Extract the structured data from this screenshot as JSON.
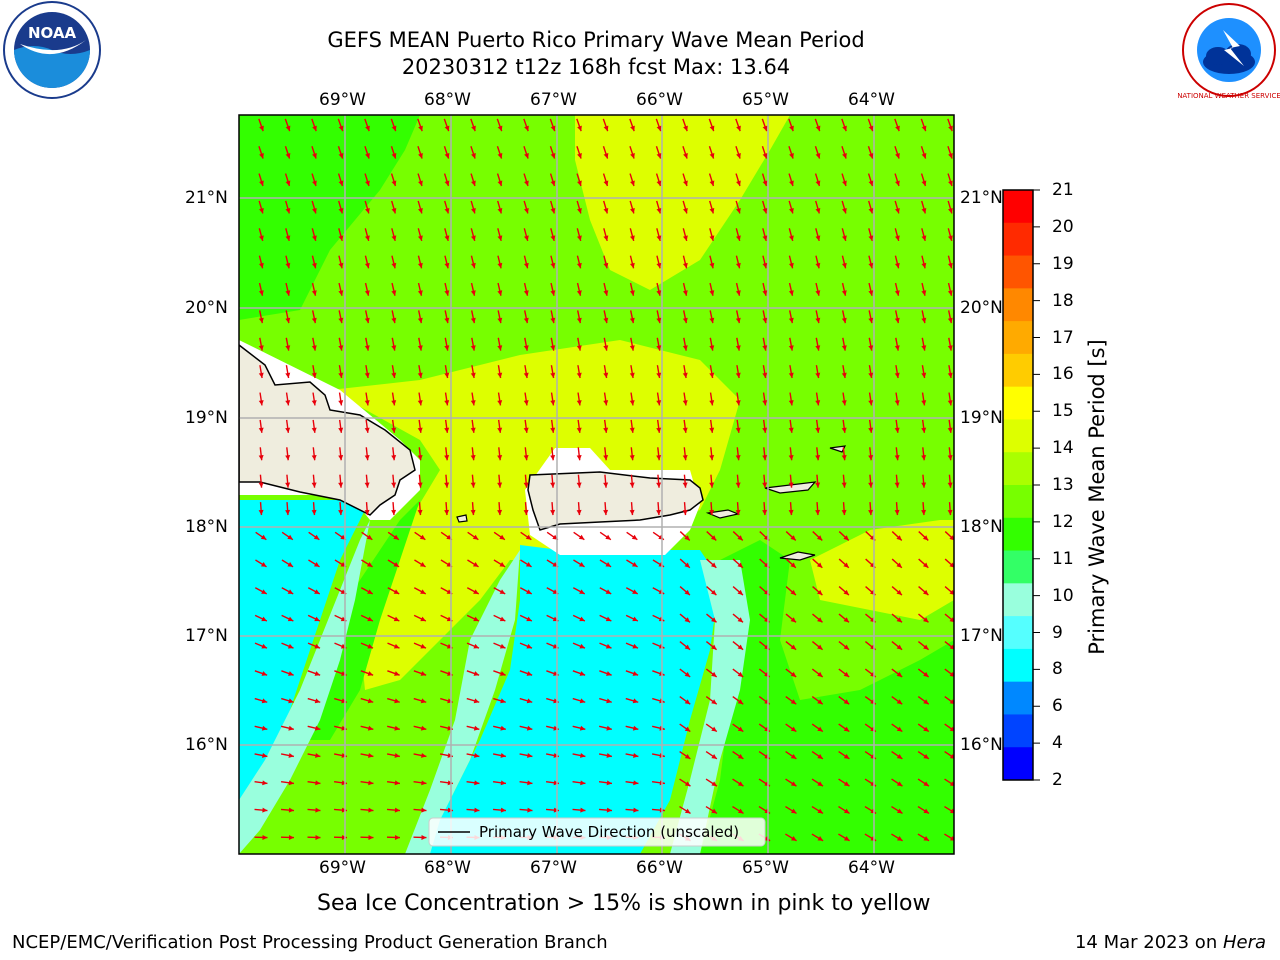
{
  "header": {
    "title_line1": "GEFS MEAN Puerto Rico Primary Wave Mean Period",
    "title_line2": "20230312 t12z 168h fcst   Max: 13.64"
  },
  "map": {
    "lon_labels": [
      "69°W",
      "68°W",
      "67°W",
      "66°W",
      "65°W",
      "64°W"
    ],
    "lat_labels": [
      "21°N",
      "20°N",
      "19°N",
      "18°N",
      "17°N",
      "16°N"
    ],
    "legend_text": "Primary Wave Direction (unscaled)",
    "arrow_color": "#e8000b",
    "land_color": "#efedde"
  },
  "colorbar": {
    "label": "Primary Wave Mean Period [s]",
    "ticks": [
      "21",
      "20",
      "19",
      "18",
      "17",
      "16",
      "15",
      "14",
      "13",
      "12",
      "11",
      "10",
      "9",
      "8",
      "6",
      "4",
      "2"
    ],
    "colors": [
      "#ff0000",
      "#ff2a00",
      "#ff5500",
      "#ff8800",
      "#ffaa00",
      "#ffcc00",
      "#ffff00",
      "#ddff00",
      "#aaff00",
      "#77ff00",
      "#33ff00",
      "#33ff66",
      "#99ffdd",
      "#55ffff",
      "#00ffff",
      "#0088ff",
      "#0044ff",
      "#0000ff"
    ]
  },
  "note": "Sea Ice Concentration > 15% is shown in pink to yellow",
  "footer": {
    "left": "NCEP/EMC/Verification Post Processing Product Generation Branch",
    "right_prefix": "14 Mar 2023 on ",
    "right_host": "Hera"
  },
  "logos": {
    "noaa_text": "NOAA",
    "nws_text": "NATIONAL WEATHER SERVICE"
  }
}
